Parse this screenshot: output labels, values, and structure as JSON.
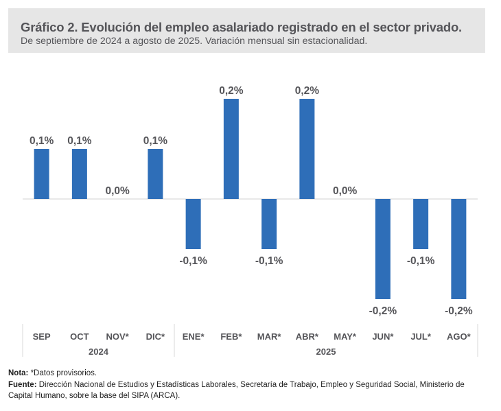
{
  "header": {
    "title": "Gráfico 2. Evolución del empleo asalariado registrado en el sector privado.",
    "subtitle": "De septiembre de 2024 a agosto de 2025. Variación mensual sin estacionalidad."
  },
  "colors": {
    "bar": "#2e6eb8",
    "label": "#555559",
    "axis": "#d9d9d9",
    "title_bg": "#e6e6e6"
  },
  "chart_data": {
    "type": "bar",
    "title": "Gráfico 2. Evolución del empleo asalariado registrado en el sector privado.",
    "subtitle": "De septiembre de 2024 a agosto de 2025. Variación mensual sin estacionalidad.",
    "xlabel": "",
    "ylabel": "",
    "categories": [
      "SEP",
      "OCT",
      "NOV*",
      "DIC*",
      "ENE*",
      "FEB*",
      "MAR*",
      "ABR*",
      "MAY*",
      "JUN*",
      "JUL*",
      "AGO*"
    ],
    "values": [
      0.1,
      0.1,
      0.0,
      0.1,
      -0.1,
      0.2,
      -0.1,
      0.2,
      0.0,
      -0.2,
      -0.1,
      -0.2
    ],
    "data_labels": [
      "0,1%",
      "0,1%",
      "0,0%",
      "0,1%",
      "-0,1%",
      "0,2%",
      "-0,1%",
      "0,2%",
      "0,0%",
      "-0,2%",
      "-0,1%",
      "-0,2%"
    ],
    "groups": [
      {
        "label": "2024",
        "from": 0,
        "to": 3
      },
      {
        "label": "2025",
        "from": 4,
        "to": 11
      }
    ],
    "ylim": [
      -0.2,
      0.2
    ],
    "grid": false,
    "legend": "none"
  },
  "footer": {
    "note_label": "Nota:",
    "note_text": " *Datos provisorios.",
    "source_label": "Fuente:",
    "source_text_line1": " Dirección Nacional de Estudios y Estadísticas Laborales, Secretaría de Trabajo, Empleo y Seguridad Social, Ministerio de",
    "source_text_line2": "Capital Humano, sobre la base del SIPA (ARCA)."
  }
}
